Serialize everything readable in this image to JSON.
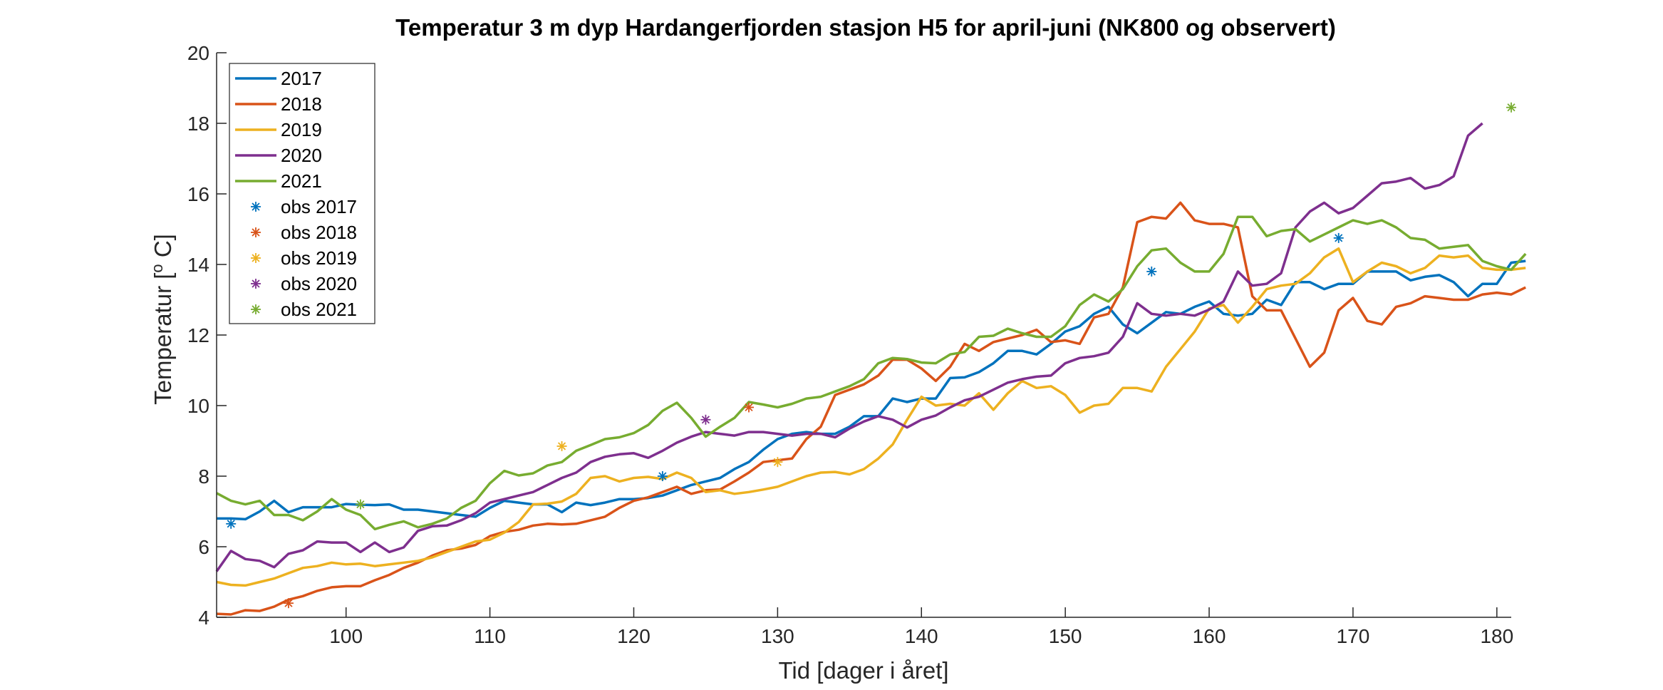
{
  "chart_data": {
    "type": "line",
    "title": "Temperatur 3 m dyp Hardangerfjorden stasjon H5 for april-juni (NK800 og observert)",
    "xlabel": "Tid [dager i året]",
    "ylabel_main": "Temperatur [",
    "ylabel_sup": "o",
    "ylabel_end": " C]",
    "xlim": [
      91,
      181
    ],
    "ylim": [
      4,
      20
    ],
    "xticks": [
      "100",
      "110",
      "120",
      "130",
      "140",
      "150",
      "160",
      "170",
      "180"
    ],
    "yticks": [
      "4",
      "6",
      "8",
      "10",
      "12",
      "14",
      "16",
      "18",
      "20"
    ],
    "grid": false,
    "legend_position": "top-left",
    "x_start": 91,
    "series": [
      {
        "name": "2017",
        "color": "#0072BD",
        "values": [
          6.8,
          6.8,
          6.78,
          7.0,
          7.3,
          6.98,
          7.12,
          7.12,
          7.12,
          7.21,
          7.19,
          7.18,
          7.2,
          7.05,
          7.05,
          7.0,
          6.95,
          6.9,
          6.85,
          7.1,
          7.3,
          7.25,
          7.2,
          7.2,
          6.98,
          7.25,
          7.18,
          7.25,
          7.35,
          7.35,
          7.38,
          7.45,
          7.6,
          7.75,
          7.85,
          7.95,
          8.2,
          8.4,
          8.75,
          9.05,
          9.2,
          9.25,
          9.2,
          9.2,
          9.4,
          9.7,
          9.7,
          10.2,
          10.1,
          10.2,
          10.2,
          10.78,
          10.8,
          10.95,
          11.2,
          11.55,
          11.55,
          11.45,
          11.75,
          12.1,
          12.25,
          12.6,
          12.8,
          12.3,
          12.05,
          12.35,
          12.65,
          12.6,
          12.8,
          12.95,
          12.6,
          12.55,
          12.6,
          13.0,
          12.85,
          13.5,
          13.5,
          13.3,
          13.45,
          13.45,
          13.8,
          13.8,
          13.8,
          13.55,
          13.65,
          13.7,
          13.5,
          13.1,
          13.45,
          13.45,
          14.05,
          14.1
        ]
      },
      {
        "name": "2018",
        "color": "#D95319",
        "values": [
          4.1,
          4.08,
          4.2,
          4.18,
          4.3,
          4.5,
          4.6,
          4.75,
          4.85,
          4.88,
          4.88,
          5.05,
          5.2,
          5.4,
          5.55,
          5.75,
          5.9,
          5.95,
          6.05,
          6.3,
          6.42,
          6.48,
          6.6,
          6.65,
          6.63,
          6.65,
          6.75,
          6.85,
          7.1,
          7.3,
          7.4,
          7.55,
          7.7,
          7.5,
          7.6,
          7.62,
          7.85,
          8.1,
          8.4,
          8.45,
          8.5,
          9.05,
          9.4,
          10.3,
          10.45,
          10.6,
          10.85,
          11.3,
          11.3,
          11.05,
          10.7,
          11.1,
          11.75,
          11.55,
          11.8,
          11.9,
          12.0,
          12.15,
          11.8,
          11.85,
          11.75,
          12.5,
          12.6,
          13.35,
          15.2,
          15.35,
          15.3,
          15.75,
          15.25,
          15.15,
          15.15,
          15.05,
          13.1,
          12.7,
          12.7,
          11.9,
          11.1,
          11.5,
          12.7,
          13.05,
          12.4,
          12.3,
          12.8,
          12.9,
          13.1,
          13.05,
          13.0,
          13.0,
          13.15,
          13.2,
          13.15,
          13.35
        ]
      },
      {
        "name": "2019",
        "color": "#EDB120",
        "values": [
          5.0,
          4.92,
          4.9,
          5.0,
          5.1,
          5.25,
          5.4,
          5.45,
          5.55,
          5.5,
          5.52,
          5.45,
          5.5,
          5.55,
          5.6,
          5.7,
          5.85,
          6.0,
          6.15,
          6.2,
          6.4,
          6.7,
          7.2,
          7.22,
          7.28,
          7.5,
          7.95,
          8.0,
          7.85,
          7.95,
          7.98,
          7.92,
          8.1,
          7.95,
          7.55,
          7.6,
          7.5,
          7.55,
          7.62,
          7.7,
          7.85,
          8.0,
          8.1,
          8.12,
          8.05,
          8.2,
          8.5,
          8.9,
          9.6,
          10.25,
          10.0,
          10.05,
          10.0,
          10.35,
          9.88,
          10.35,
          10.7,
          10.5,
          10.55,
          10.3,
          9.8,
          10.0,
          10.05,
          10.5,
          10.5,
          10.4,
          11.1,
          11.6,
          12.1,
          12.75,
          12.85,
          12.35,
          12.8,
          13.3,
          13.4,
          13.45,
          13.75,
          14.2,
          14.45,
          13.5,
          13.8,
          14.05,
          13.95,
          13.75,
          13.9,
          14.25,
          14.2,
          14.25,
          13.9,
          13.85,
          13.85,
          13.9
        ]
      },
      {
        "name": "2020",
        "color": "#7E2F8E",
        "values": [
          5.3,
          5.88,
          5.65,
          5.6,
          5.42,
          5.8,
          5.9,
          6.15,
          6.12,
          6.12,
          5.85,
          6.12,
          5.85,
          5.98,
          6.45,
          6.58,
          6.6,
          6.75,
          6.95,
          7.25,
          7.35,
          7.45,
          7.55,
          7.75,
          7.95,
          8.1,
          8.4,
          8.55,
          8.62,
          8.65,
          8.52,
          8.72,
          8.95,
          9.12,
          9.25,
          9.2,
          9.15,
          9.25,
          9.25,
          9.2,
          9.15,
          9.2,
          9.2,
          9.1,
          9.35,
          9.55,
          9.7,
          9.6,
          9.38,
          9.6,
          9.72,
          9.95,
          10.15,
          10.25,
          10.45,
          10.65,
          10.75,
          10.82,
          10.85,
          11.2,
          11.35,
          11.4,
          11.5,
          11.95,
          12.9,
          12.6,
          12.55,
          12.6,
          12.55,
          12.72,
          12.95,
          13.8,
          13.4,
          13.45,
          13.75,
          15.05,
          15.5,
          15.75,
          15.45,
          15.6,
          15.95,
          16.3,
          16.35,
          16.45,
          16.15,
          16.25,
          16.5,
          17.65,
          18.0
        ]
      },
      {
        "name": "2021",
        "color": "#77AC30",
        "values": [
          7.52,
          7.3,
          7.2,
          7.3,
          6.9,
          6.9,
          6.75,
          7.0,
          7.35,
          7.05,
          6.9,
          6.5,
          6.62,
          6.72,
          6.55,
          6.65,
          6.8,
          7.1,
          7.3,
          7.8,
          8.15,
          8.02,
          8.08,
          8.3,
          8.4,
          8.72,
          8.88,
          9.05,
          9.1,
          9.22,
          9.45,
          9.85,
          10.08,
          9.65,
          9.12,
          9.4,
          9.65,
          10.1,
          10.03,
          9.95,
          10.05,
          10.2,
          10.25,
          10.4,
          10.55,
          10.75,
          11.2,
          11.35,
          11.32,
          11.22,
          11.2,
          11.45,
          11.52,
          11.95,
          11.98,
          12.18,
          12.05,
          11.95,
          11.95,
          12.25,
          12.85,
          13.15,
          12.95,
          13.3,
          13.95,
          14.4,
          14.45,
          14.05,
          13.8,
          13.8,
          14.3,
          15.35,
          15.35,
          14.8,
          14.95,
          15.0,
          14.65,
          14.85,
          15.05,
          15.25,
          15.15,
          15.25,
          15.05,
          14.75,
          14.7,
          14.45,
          14.5,
          14.55,
          14.1,
          13.95,
          13.85,
          14.3
        ]
      }
    ],
    "observations": [
      {
        "name": "obs 2017",
        "color": "#0072BD",
        "points": [
          [
            92,
            6.65
          ],
          [
            122,
            8.0
          ],
          [
            156,
            13.8
          ],
          [
            169,
            14.75
          ]
        ]
      },
      {
        "name": "obs 2018",
        "color": "#D95319",
        "points": [
          [
            96,
            4.4
          ],
          [
            128,
            9.95
          ]
        ]
      },
      {
        "name": "obs 2019",
        "color": "#EDB120",
        "points": [
          [
            115,
            8.85
          ],
          [
            130,
            8.4
          ]
        ]
      },
      {
        "name": "obs 2020",
        "color": "#7E2F8E",
        "points": [
          [
            125,
            9.6
          ]
        ]
      },
      {
        "name": "obs 2021",
        "color": "#77AC30",
        "points": [
          [
            101,
            7.2
          ],
          [
            181,
            18.45
          ]
        ]
      }
    ]
  }
}
